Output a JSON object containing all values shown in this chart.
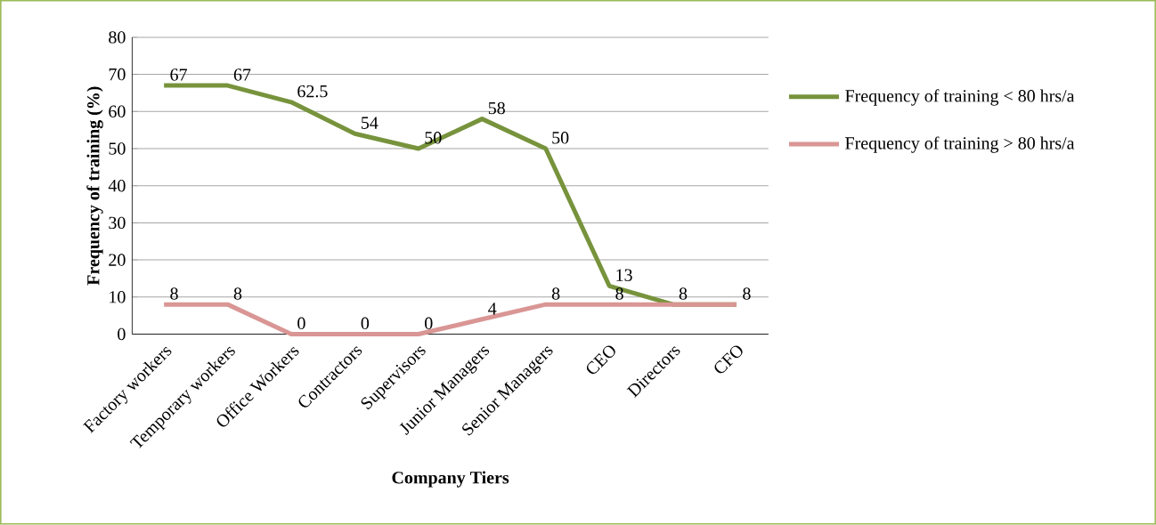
{
  "chart_data": {
    "type": "line",
    "xlabel": "Company Tiers",
    "ylabel": "Frequency of training (%)",
    "categories": [
      "Factory workers",
      "Temporary workers",
      "Office Workers",
      "Contractors",
      "Supervisors",
      "Junior Managers",
      "Senior Managers",
      "CEO",
      "Directors",
      "CFO"
    ],
    "series": [
      {
        "name": "Frequency of training < 80 hrs/a",
        "color": "#77933c",
        "values": [
          67,
          67,
          62.5,
          54,
          50,
          58,
          50,
          13,
          8,
          8
        ],
        "value_labels": [
          "67",
          "67",
          "62.5",
          "54",
          "50",
          "58",
          "50",
          "13",
          "8",
          "8"
        ]
      },
      {
        "name": "Frequency of training > 80 hrs/a",
        "color": "#d99694",
        "values": [
          8,
          8,
          0,
          0,
          0,
          4,
          8,
          8,
          8,
          8
        ],
        "value_labels": [
          "8",
          "8",
          "0",
          "0",
          "0",
          "4",
          "8",
          "8",
          null,
          null
        ]
      }
    ],
    "ylim": [
      0,
      80
    ],
    "yticks": [
      0,
      10,
      20,
      30,
      40,
      50,
      60,
      70,
      80
    ],
    "grid": "y",
    "legend": "right",
    "marker": "none",
    "line_style": "solid"
  }
}
